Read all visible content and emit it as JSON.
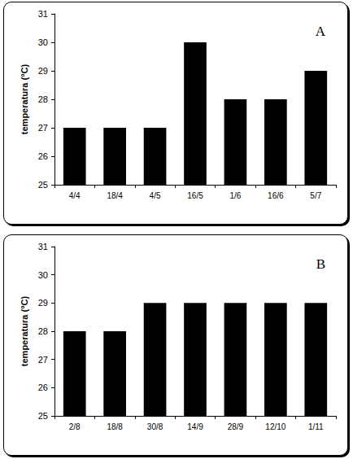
{
  "chart_data": [
    {
      "type": "bar",
      "title": "A",
      "ylabel": "temperatura (°C)",
      "categories": [
        "4/4",
        "18/4",
        "4/5",
        "16/5",
        "1/6",
        "16/6",
        "5/7"
      ],
      "values": [
        27,
        27,
        27,
        30,
        28,
        28,
        29
      ],
      "color": "#000000",
      "ylim": [
        25,
        31
      ],
      "yticks": [
        25,
        26,
        27,
        28,
        29,
        30,
        31
      ],
      "grid": false
    },
    {
      "type": "bar",
      "title": "B",
      "ylabel": "temperatura (°C)",
      "categories": [
        "2/8",
        "18/8",
        "30/8",
        "14/9",
        "28/9",
        "12/10",
        "1/11"
      ],
      "values": [
        28,
        28,
        29,
        29,
        29,
        29,
        29
      ],
      "color": "#000000",
      "ylim": [
        25,
        31
      ],
      "yticks": [
        25,
        26,
        27,
        28,
        29,
        30,
        31
      ],
      "grid": false
    }
  ]
}
